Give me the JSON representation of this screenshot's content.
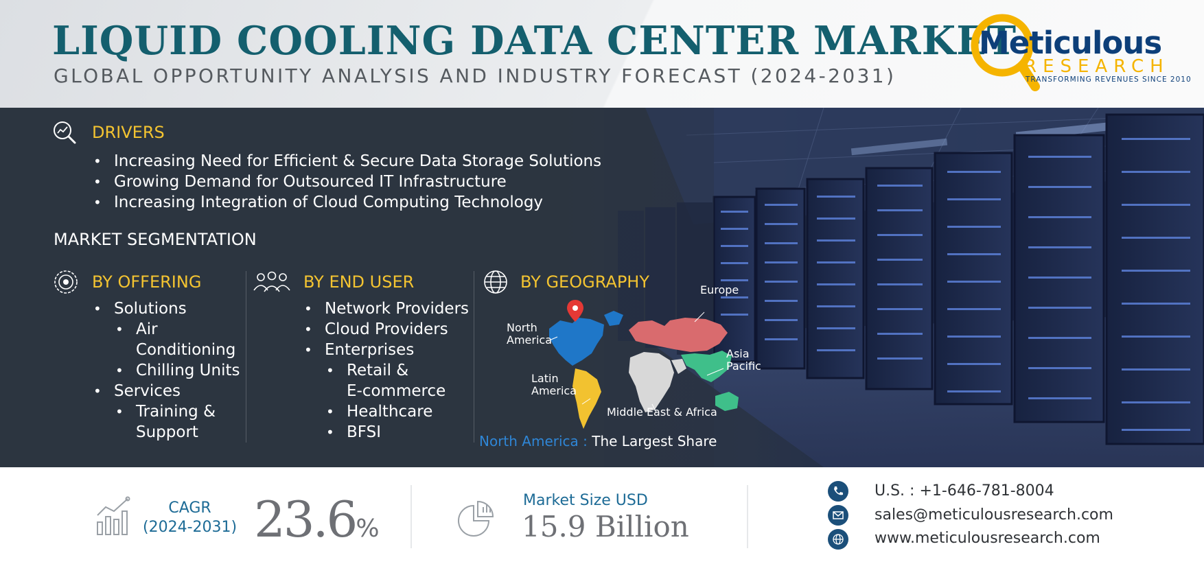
{
  "header": {
    "title": "LIQUID COOLING DATA CENTER MARKET",
    "subtitle": "GLOBAL OPPORTUNITY ANALYSIS AND INDUSTRY FORECAST (2024-2031)"
  },
  "logo": {
    "name": "Meticulous",
    "research": "RESEARCH",
    "tagline": "TRANSFORMING REVENUES SINCE 2010"
  },
  "drivers": {
    "heading": "DRIVERS",
    "items": [
      "Increasing Need for Efficient & Secure Data Storage Solutions",
      "Growing Demand for Outsourced IT Infrastructure",
      "Increasing Integration of Cloud Computing Technology"
    ]
  },
  "segmentation": {
    "heading": "MARKET SEGMENTATION",
    "offering": {
      "heading": "BY OFFERING",
      "solutions": "Solutions",
      "air_line1": "Air",
      "air_line2": "Conditioning",
      "chilling": "Chilling Units",
      "services": "Services",
      "training_line1": "Training &",
      "training_line2": "Support"
    },
    "end_user": {
      "heading": "BY END USER",
      "network": "Network Providers",
      "cloud": "Cloud Providers",
      "enterprises": "Enterprises",
      "retail_line1": "Retail &",
      "retail_line2": "E-commerce",
      "healthcare": "Healthcare",
      "bfsi": "BFSI"
    },
    "geography": {
      "heading": "BY GEOGRAPHY",
      "europe": "Europe",
      "north_america_line1": "North",
      "north_america_line2": "America",
      "asia_line1": "Asia",
      "asia_line2": "Pacific",
      "latin_line1": "Latin",
      "latin_line2": "America",
      "mea": "Middle East & Africa",
      "largest_region": "North America :",
      "largest_text": "The Largest Share"
    }
  },
  "footer": {
    "cagr_label": "CAGR",
    "cagr_period": "(2024-2031)",
    "cagr_value": "23.6",
    "cagr_unit": "%",
    "market_label": "Market Size USD",
    "market_value": "15.9 Billion",
    "phone": "U.S. : +1-646-781-8004",
    "email": "sales@meticulousresearch.com",
    "website": "www.meticulousresearch.com"
  },
  "colors": {
    "title": "#145f6e",
    "accent_yellow": "#f4c431",
    "accent_blue": "#1d6b96",
    "dark_band": "#2c3540",
    "logo_blue": "#0d3f79",
    "logo_yellow": "#f5b400"
  }
}
